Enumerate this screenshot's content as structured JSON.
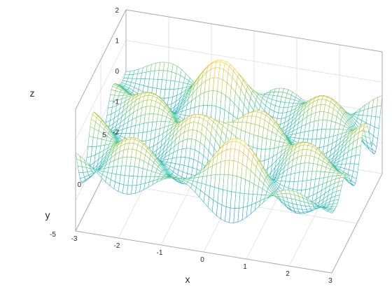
{
  "chart_data": {
    "type": "mesh3d",
    "title": "",
    "xlabel": "x",
    "ylabel": "y",
    "zlabel": "z",
    "xlim": [
      -3,
      3
    ],
    "ylim": [
      -5,
      5
    ],
    "zlim": [
      -2,
      2
    ],
    "xticks": [
      -3,
      -2,
      -1,
      0,
      1,
      2,
      3
    ],
    "yticks": [
      -5,
      0,
      5
    ],
    "zticks": [
      -2,
      -1,
      0,
      1,
      2
    ],
    "xtick_labels": [
      "-3",
      "-2",
      "-1",
      "0",
      "1",
      "2",
      "3"
    ],
    "ytick_labels": [
      "-5",
      "0",
      "5"
    ],
    "ztick_labels": [
      "-2",
      "-1",
      "0",
      "1",
      "2"
    ],
    "surface": {
      "x_range": [
        -3,
        3
      ],
      "y_range": [
        -5,
        5
      ],
      "z_range": [
        -1.6,
        1.6
      ],
      "grid_rows": 45,
      "grid_cols": 60
    },
    "grid": true,
    "colormap": [
      "#3e26a8",
      "#2f6ff5",
      "#17a6d6",
      "#2ec4a0",
      "#9ec93a",
      "#f5b937",
      "#f9fb0e"
    ],
    "colorbar": false
  }
}
